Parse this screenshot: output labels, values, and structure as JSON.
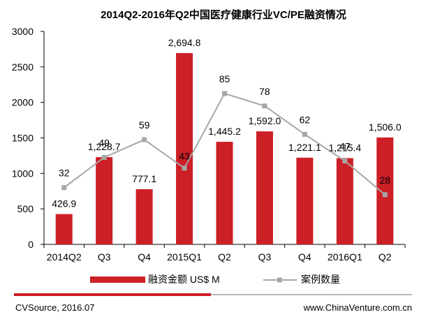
{
  "chart_data": {
    "type": "bar+line",
    "title": "2014Q2-2016年Q2中国医疗健康行业VC/PE融资情况",
    "categories": [
      "2014Q2",
      "Q3",
      "Q4",
      "2015Q1",
      "Q2",
      "Q3",
      "Q4",
      "2016Q1",
      "Q2"
    ],
    "series": [
      {
        "name": "融资金额 US$ M",
        "type": "bar",
        "axis": "left",
        "color": "#cc1f26",
        "values": [
          426.9,
          1228.7,
          777.1,
          2694.8,
          1445.2,
          1592.0,
          1221.1,
          1215.4,
          1506.0
        ],
        "labels": [
          "426.9",
          "1,228.7",
          "777.1",
          "2,694.8",
          "1,445.2",
          "1,592.0",
          "1,221.1",
          "1,215.4",
          "1,506.0"
        ]
      },
      {
        "name": "案例数量",
        "type": "line",
        "axis": "right-hidden",
        "color": "#a6a6a6",
        "values": [
          32,
          49,
          59,
          43,
          85,
          78,
          62,
          47,
          28
        ],
        "labels": [
          "32",
          "49",
          "59",
          "43",
          "85",
          "78",
          "62",
          "47",
          "28"
        ]
      }
    ],
    "y_left": {
      "min": 0,
      "max": 3000,
      "ticks": [
        "0",
        "500",
        "1000",
        "1500",
        "2000",
        "2500",
        "3000"
      ]
    },
    "y_right": {
      "min": 0,
      "max": 120
    },
    "grid": false,
    "legend_position": "bottom"
  },
  "footer": {
    "source": "CVSource, 2016.07",
    "website": "www.ChinaVenture.com.cn",
    "accent_color": "#cc1f26"
  }
}
